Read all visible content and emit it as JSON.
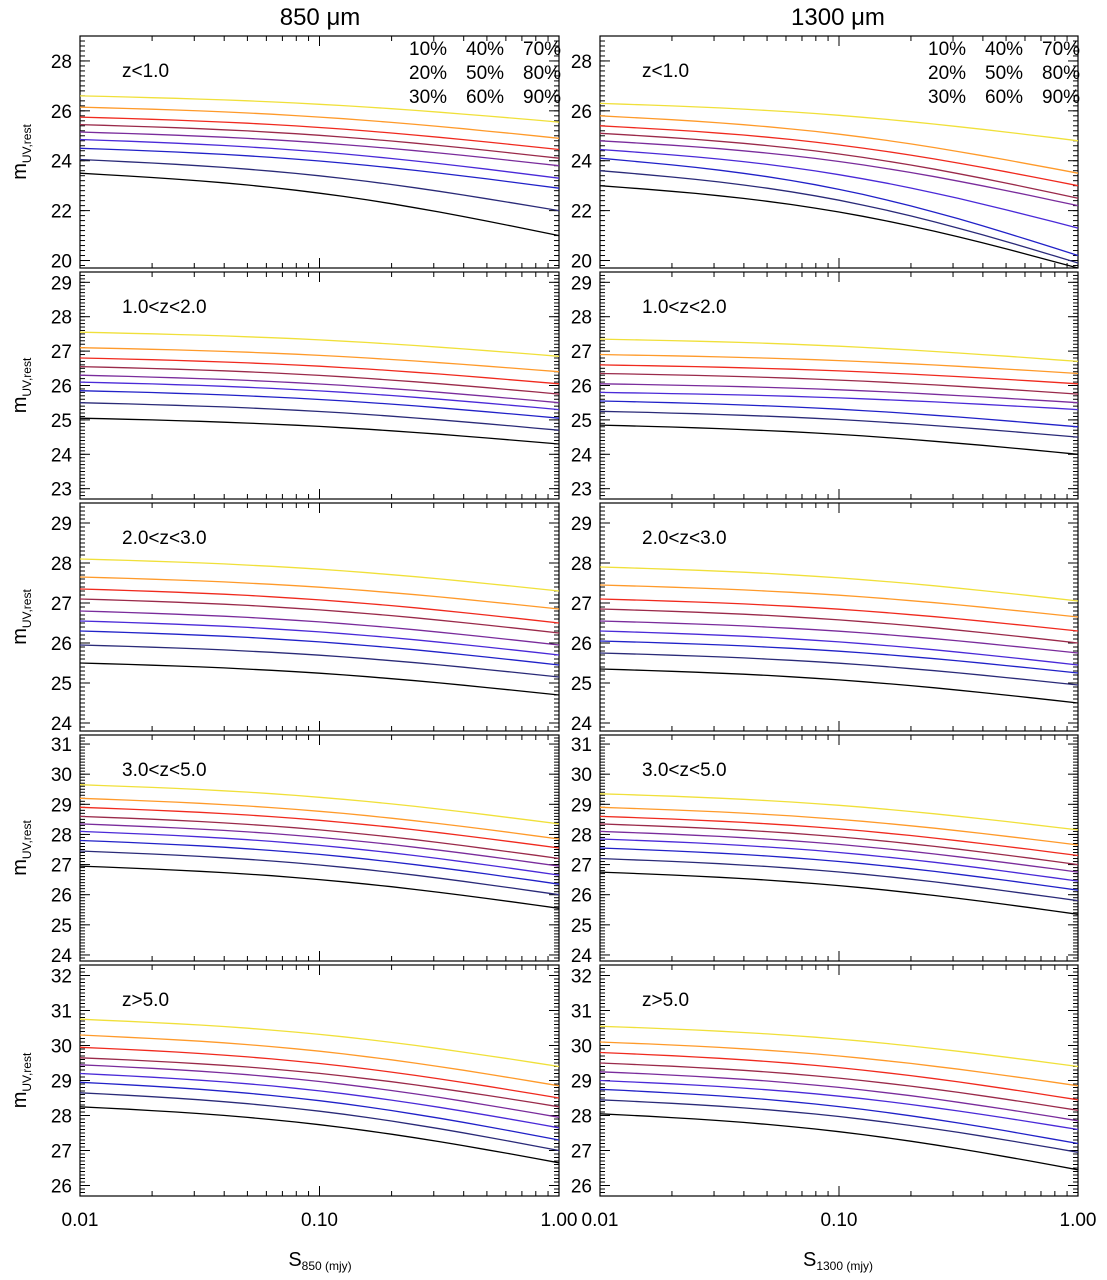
{
  "column_titles": [
    "850 μm",
    "1300 μm"
  ],
  "xlabels": [
    {
      "main": "S",
      "sub": "850 (mjy)"
    },
    {
      "main": "S",
      "sub": "1300 (mjy)"
    }
  ],
  "ylabel": {
    "main": "m",
    "sub": "UV,rest"
  },
  "legend": {
    "placement": "top-right",
    "entries": [
      "10%",
      "20%",
      "30%",
      "40%",
      "50%",
      "60%",
      "70%",
      "80%",
      "90%"
    ]
  },
  "colors": {
    "10%": "#000000",
    "20%": "#2a2a78",
    "30%": "#2121c8",
    "40%": "#4a2ad8",
    "50%": "#7a2c9c",
    "60%": "#9a2a4a",
    "70%": "#f02a1e",
    "80%": "#ff9a2a",
    "90%": "#f0e03a"
  },
  "chart_data": [
    {
      "type": "line",
      "column": 0,
      "row": 0,
      "label": "z<1.0",
      "x": [
        0.01,
        1.0
      ],
      "xscale": "log",
      "xlim": [
        0.01,
        1.0
      ],
      "xticks": [
        "0.01",
        "0.10",
        "1.00"
      ],
      "ylim": [
        19.7,
        29.0
      ],
      "yticks": [
        20,
        22,
        24,
        26,
        28
      ],
      "series": [
        {
          "name": "10%",
          "values": [
            23.5,
            21.0
          ]
        },
        {
          "name": "20%",
          "values": [
            24.05,
            22.0
          ]
        },
        {
          "name": "30%",
          "values": [
            24.5,
            22.9
          ]
        },
        {
          "name": "40%",
          "values": [
            24.85,
            23.3
          ]
        },
        {
          "name": "50%",
          "values": [
            25.15,
            23.8
          ]
        },
        {
          "name": "60%",
          "values": [
            25.45,
            24.1
          ]
        },
        {
          "name": "70%",
          "values": [
            25.75,
            24.45
          ]
        },
        {
          "name": "80%",
          "values": [
            26.15,
            24.9
          ]
        },
        {
          "name": "90%",
          "values": [
            26.6,
            25.55
          ]
        }
      ]
    },
    {
      "type": "line",
      "column": 1,
      "row": 0,
      "label": "z<1.0",
      "x": [
        0.01,
        1.0
      ],
      "xscale": "log",
      "xlim": [
        0.01,
        1.0
      ],
      "xticks": [
        "0.01",
        "0.10",
        "1.00"
      ],
      "ylim": [
        19.7,
        29.0
      ],
      "yticks": [
        20,
        22,
        24,
        26,
        28
      ],
      "series": [
        {
          "name": "10%",
          "values": [
            23.0,
            19.7
          ]
        },
        {
          "name": "20%",
          "values": [
            23.6,
            19.9
          ]
        },
        {
          "name": "30%",
          "values": [
            24.1,
            20.2
          ]
        },
        {
          "name": "40%",
          "values": [
            24.45,
            21.3
          ]
        },
        {
          "name": "50%",
          "values": [
            24.8,
            22.2
          ]
        },
        {
          "name": "60%",
          "values": [
            25.1,
            22.5
          ]
        },
        {
          "name": "70%",
          "values": [
            25.4,
            23.0
          ]
        },
        {
          "name": "80%",
          "values": [
            25.8,
            23.5
          ]
        },
        {
          "name": "90%",
          "values": [
            26.3,
            24.8
          ]
        }
      ]
    },
    {
      "type": "line",
      "column": 0,
      "row": 1,
      "label": "1.0<z<2.0",
      "x": [
        0.01,
        1.0
      ],
      "xscale": "log",
      "xlim": [
        0.01,
        1.0
      ],
      "xticks": [
        "0.01",
        "0.10",
        "1.00"
      ],
      "ylim": [
        22.7,
        29.3
      ],
      "yticks": [
        23,
        24,
        25,
        26,
        27,
        28,
        29
      ],
      "series": [
        {
          "name": "10%",
          "values": [
            25.05,
            24.3
          ]
        },
        {
          "name": "20%",
          "values": [
            25.5,
            24.7
          ]
        },
        {
          "name": "30%",
          "values": [
            25.85,
            25.05
          ]
        },
        {
          "name": "40%",
          "values": [
            26.1,
            25.3
          ]
        },
        {
          "name": "50%",
          "values": [
            26.3,
            25.5
          ]
        },
        {
          "name": "60%",
          "values": [
            26.55,
            25.75
          ]
        },
        {
          "name": "70%",
          "values": [
            26.8,
            26.05
          ]
        },
        {
          "name": "80%",
          "values": [
            27.1,
            26.4
          ]
        },
        {
          "name": "90%",
          "values": [
            27.55,
            26.85
          ]
        }
      ]
    },
    {
      "type": "line",
      "column": 1,
      "row": 1,
      "label": "1.0<z<2.0",
      "x": [
        0.01,
        1.0
      ],
      "xscale": "log",
      "xlim": [
        0.01,
        1.0
      ],
      "xticks": [
        "0.01",
        "0.10",
        "1.00"
      ],
      "ylim": [
        22.7,
        29.3
      ],
      "yticks": [
        23,
        24,
        25,
        26,
        27,
        28,
        29
      ],
      "series": [
        {
          "name": "10%",
          "values": [
            24.85,
            24.0
          ]
        },
        {
          "name": "20%",
          "values": [
            25.25,
            24.5
          ]
        },
        {
          "name": "30%",
          "values": [
            25.55,
            24.8
          ]
        },
        {
          "name": "40%",
          "values": [
            25.8,
            25.3
          ]
        },
        {
          "name": "50%",
          "values": [
            26.05,
            25.5
          ]
        },
        {
          "name": "60%",
          "values": [
            26.35,
            25.75
          ]
        },
        {
          "name": "70%",
          "values": [
            26.6,
            26.05
          ]
        },
        {
          "name": "80%",
          "values": [
            26.9,
            26.35
          ]
        },
        {
          "name": "90%",
          "values": [
            27.35,
            26.7
          ]
        }
      ]
    },
    {
      "type": "line",
      "column": 0,
      "row": 2,
      "label": "2.0<z<3.0",
      "x": [
        0.01,
        1.0
      ],
      "xscale": "log",
      "xlim": [
        0.01,
        1.0
      ],
      "xticks": [
        "0.01",
        "0.10",
        "1.00"
      ],
      "ylim": [
        23.8,
        29.5
      ],
      "yticks": [
        24,
        25,
        26,
        27,
        28,
        29
      ],
      "series": [
        {
          "name": "10%",
          "values": [
            25.5,
            24.7
          ]
        },
        {
          "name": "20%",
          "values": [
            25.95,
            25.15
          ]
        },
        {
          "name": "30%",
          "values": [
            26.3,
            25.45
          ]
        },
        {
          "name": "40%",
          "values": [
            26.55,
            25.7
          ]
        },
        {
          "name": "50%",
          "values": [
            26.8,
            25.95
          ]
        },
        {
          "name": "60%",
          "values": [
            27.1,
            26.25
          ]
        },
        {
          "name": "70%",
          "values": [
            27.35,
            26.5
          ]
        },
        {
          "name": "80%",
          "values": [
            27.65,
            26.85
          ]
        },
        {
          "name": "90%",
          "values": [
            28.1,
            27.3
          ]
        }
      ]
    },
    {
      "type": "line",
      "column": 1,
      "row": 2,
      "label": "2.0<z<3.0",
      "x": [
        0.01,
        1.0
      ],
      "xscale": "log",
      "xlim": [
        0.01,
        1.0
      ],
      "xticks": [
        "0.01",
        "0.10",
        "1.00"
      ],
      "ylim": [
        23.8,
        29.5
      ],
      "yticks": [
        24,
        25,
        26,
        27,
        28,
        29
      ],
      "series": [
        {
          "name": "10%",
          "values": [
            25.35,
            24.5
          ]
        },
        {
          "name": "20%",
          "values": [
            25.75,
            24.95
          ]
        },
        {
          "name": "30%",
          "values": [
            26.05,
            25.25
          ]
        },
        {
          "name": "40%",
          "values": [
            26.3,
            25.45
          ]
        },
        {
          "name": "50%",
          "values": [
            26.55,
            25.75
          ]
        },
        {
          "name": "60%",
          "values": [
            26.85,
            26.0
          ]
        },
        {
          "name": "70%",
          "values": [
            27.1,
            26.3
          ]
        },
        {
          "name": "80%",
          "values": [
            27.45,
            26.65
          ]
        },
        {
          "name": "90%",
          "values": [
            27.9,
            27.05
          ]
        }
      ]
    },
    {
      "type": "line",
      "column": 0,
      "row": 3,
      "label": "3.0<z<5.0",
      "x": [
        0.01,
        1.0
      ],
      "xscale": "log",
      "xlim": [
        0.01,
        1.0
      ],
      "xticks": [
        "0.01",
        "0.10",
        "1.00"
      ],
      "ylim": [
        23.8,
        31.3
      ],
      "yticks": [
        24,
        25,
        26,
        27,
        28,
        29,
        30,
        31
      ],
      "series": [
        {
          "name": "10%",
          "values": [
            26.95,
            25.55
          ]
        },
        {
          "name": "20%",
          "values": [
            27.45,
            26.0
          ]
        },
        {
          "name": "30%",
          "values": [
            27.8,
            26.35
          ]
        },
        {
          "name": "40%",
          "values": [
            28.1,
            26.65
          ]
        },
        {
          "name": "50%",
          "values": [
            28.35,
            26.95
          ]
        },
        {
          "name": "60%",
          "values": [
            28.6,
            27.2
          ]
        },
        {
          "name": "70%",
          "values": [
            28.9,
            27.55
          ]
        },
        {
          "name": "80%",
          "values": [
            29.2,
            27.85
          ]
        },
        {
          "name": "90%",
          "values": [
            29.65,
            28.35
          ]
        }
      ]
    },
    {
      "type": "line",
      "column": 1,
      "row": 3,
      "label": "3.0<z<5.0",
      "x": [
        0.01,
        1.0
      ],
      "xscale": "log",
      "xlim": [
        0.01,
        1.0
      ],
      "xticks": [
        "0.01",
        "0.10",
        "1.00"
      ],
      "ylim": [
        23.8,
        31.3
      ],
      "yticks": [
        24,
        25,
        26,
        27,
        28,
        29,
        30,
        31
      ],
      "series": [
        {
          "name": "10%",
          "values": [
            26.75,
            25.35
          ]
        },
        {
          "name": "20%",
          "values": [
            27.2,
            25.8
          ]
        },
        {
          "name": "30%",
          "values": [
            27.55,
            26.15
          ]
        },
        {
          "name": "40%",
          "values": [
            27.85,
            26.45
          ]
        },
        {
          "name": "50%",
          "values": [
            28.1,
            26.75
          ]
        },
        {
          "name": "60%",
          "values": [
            28.35,
            27.0
          ]
        },
        {
          "name": "70%",
          "values": [
            28.6,
            27.3
          ]
        },
        {
          "name": "80%",
          "values": [
            28.9,
            27.65
          ]
        },
        {
          "name": "90%",
          "values": [
            29.35,
            28.15
          ]
        }
      ]
    },
    {
      "type": "line",
      "column": 0,
      "row": 4,
      "label": "z>5.0",
      "x": [
        0.01,
        1.0
      ],
      "xscale": "log",
      "xlim": [
        0.01,
        1.0
      ],
      "xticks": [
        "0.01",
        "0.10",
        "1.00"
      ],
      "ylim": [
        25.7,
        32.3
      ],
      "yticks": [
        26,
        27,
        28,
        29,
        30,
        31,
        32
      ],
      "series": [
        {
          "name": "10%",
          "values": [
            28.25,
            26.65
          ]
        },
        {
          "name": "20%",
          "values": [
            28.65,
            27.0
          ]
        },
        {
          "name": "30%",
          "values": [
            28.95,
            27.3
          ]
        },
        {
          "name": "40%",
          "values": [
            29.2,
            27.65
          ]
        },
        {
          "name": "50%",
          "values": [
            29.45,
            27.95
          ]
        },
        {
          "name": "60%",
          "values": [
            29.65,
            28.25
          ]
        },
        {
          "name": "70%",
          "values": [
            29.95,
            28.5
          ]
        },
        {
          "name": "80%",
          "values": [
            30.3,
            28.85
          ]
        },
        {
          "name": "90%",
          "values": [
            30.75,
            29.4
          ]
        }
      ]
    },
    {
      "type": "line",
      "column": 1,
      "row": 4,
      "label": "z>5.0",
      "x": [
        0.01,
        1.0
      ],
      "xscale": "log",
      "xlim": [
        0.01,
        1.0
      ],
      "xticks": [
        "0.01",
        "0.10",
        "1.00"
      ],
      "ylim": [
        25.7,
        32.3
      ],
      "yticks": [
        26,
        27,
        28,
        29,
        30,
        31,
        32
      ],
      "series": [
        {
          "name": "10%",
          "values": [
            28.05,
            26.45
          ]
        },
        {
          "name": "20%",
          "values": [
            28.45,
            26.95
          ]
        },
        {
          "name": "30%",
          "values": [
            28.75,
            27.2
          ]
        },
        {
          "name": "40%",
          "values": [
            29.0,
            27.6
          ]
        },
        {
          "name": "50%",
          "values": [
            29.25,
            27.85
          ]
        },
        {
          "name": "60%",
          "values": [
            29.5,
            28.15
          ]
        },
        {
          "name": "70%",
          "values": [
            29.8,
            28.45
          ]
        },
        {
          "name": "80%",
          "values": [
            30.1,
            28.85
          ]
        },
        {
          "name": "90%",
          "values": [
            30.55,
            29.4
          ]
        }
      ]
    }
  ]
}
